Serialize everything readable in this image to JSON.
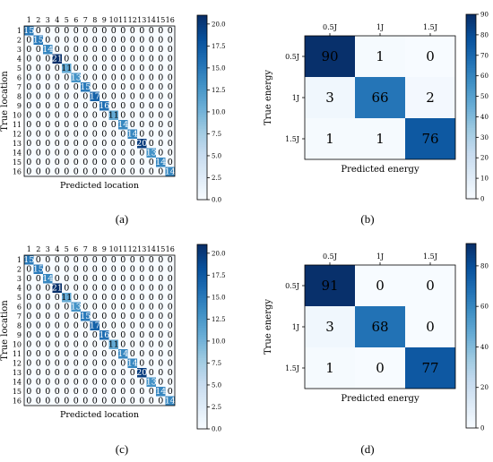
{
  "colors": {
    "low": "#f7fbff",
    "high": "#08306b",
    "palette": [
      "#f7fbff",
      "#deebf7",
      "#c6dbef",
      "#9ecae1",
      "#6baed6",
      "#4292c6",
      "#2171b5",
      "#08519c",
      "#08306b"
    ]
  },
  "panel_labels": [
    "(a)",
    "(b)",
    "(c)",
    "(d)"
  ],
  "chart_data": [
    {
      "type": "heatmap",
      "xlabel": "Predicted location",
      "ylabel": "True location",
      "categories": [
        "1",
        "2",
        "3",
        "4",
        "5",
        "6",
        "7",
        "8",
        "9",
        "10",
        "11",
        "12",
        "13",
        "14",
        "15",
        "16"
      ],
      "diagonal": [
        15,
        15,
        14,
        21,
        11,
        13,
        15,
        17,
        16,
        11,
        14,
        14,
        20,
        13,
        14,
        14
      ],
      "colorbar": {
        "min": 0,
        "max": 21,
        "ticks": [
          "0.0",
          "2.5",
          "5.0",
          "7.5",
          "10.0",
          "12.5",
          "15.0",
          "17.5",
          "20.0"
        ]
      }
    },
    {
      "type": "heatmap",
      "xlabel": "Predicted energy",
      "ylabel": "True energy",
      "categories": [
        "0.5J",
        "1J",
        "1.5J"
      ],
      "matrix": [
        [
          90,
          1,
          0
        ],
        [
          3,
          66,
          2
        ],
        [
          1,
          1,
          76
        ]
      ],
      "colorbar": {
        "min": 0,
        "max": 90,
        "ticks": [
          "0",
          "10",
          "20",
          "30",
          "40",
          "50",
          "60",
          "70",
          "80",
          "90"
        ]
      }
    },
    {
      "type": "heatmap",
      "xlabel": "Predicted location",
      "ylabel": "True location",
      "categories": [
        "1",
        "2",
        "3",
        "4",
        "5",
        "6",
        "7",
        "8",
        "9",
        "10",
        "11",
        "12",
        "13",
        "14",
        "15",
        "16"
      ],
      "diagonal": [
        15,
        15,
        14,
        21,
        11,
        13,
        15,
        17,
        16,
        11,
        14,
        14,
        20,
        13,
        14,
        14
      ],
      "colorbar": {
        "min": 0,
        "max": 21,
        "ticks": [
          "0.0",
          "2.5",
          "5.0",
          "7.5",
          "10.0",
          "12.5",
          "15.0",
          "17.5",
          "20.0"
        ]
      }
    },
    {
      "type": "heatmap",
      "xlabel": "Predicted energy",
      "ylabel": "True energy",
      "categories": [
        "0.5J",
        "1J",
        "1.5J"
      ],
      "matrix": [
        [
          91,
          0,
          0
        ],
        [
          3,
          68,
          0
        ],
        [
          1,
          0,
          77
        ]
      ],
      "colorbar": {
        "min": 0,
        "max": 91,
        "ticks": [
          "0",
          "20",
          "40",
          "60",
          "80"
        ]
      }
    }
  ]
}
